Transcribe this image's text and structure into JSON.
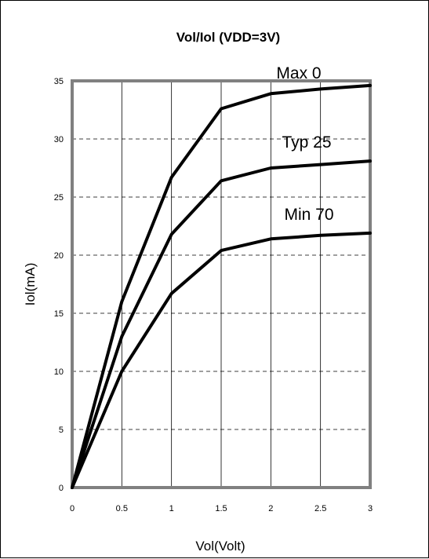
{
  "chart_data": {
    "type": "line",
    "title": "Vol/Iol (VDD=3V)",
    "xlabel": "Vol(Volt)",
    "ylabel": "Iol(mA)",
    "xlim": [
      0,
      3
    ],
    "ylim": [
      0,
      35
    ],
    "x_ticks": [
      0,
      0.5,
      1,
      1.5,
      2,
      2.5,
      3
    ],
    "x_tick_labels": [
      "0",
      "0.5",
      "1",
      "1.5",
      "2",
      "2.5",
      "3"
    ],
    "y_ticks": [
      0,
      5,
      10,
      15,
      20,
      25,
      30,
      35
    ],
    "y_tick_labels": [
      "0",
      "5",
      "10",
      "15",
      "20",
      "25",
      "30",
      "35"
    ],
    "grid": {
      "vertical": "solid",
      "horizontal": "dashed"
    },
    "x": [
      0,
      0.5,
      1,
      1.5,
      2,
      2.5,
      3
    ],
    "series": [
      {
        "name": "Max 0",
        "values": [
          0,
          16.0,
          26.7,
          32.6,
          33.9,
          34.3,
          34.6
        ]
      },
      {
        "name": "Typ 25",
        "values": [
          0,
          13.0,
          21.8,
          26.4,
          27.5,
          27.8,
          28.1
        ]
      },
      {
        "name": "Min 70",
        "values": [
          0,
          10.0,
          16.7,
          20.4,
          21.4,
          21.7,
          21.9
        ]
      }
    ],
    "colors": {
      "line": "#000000",
      "frame": "#808080",
      "grid": "#000000"
    }
  }
}
